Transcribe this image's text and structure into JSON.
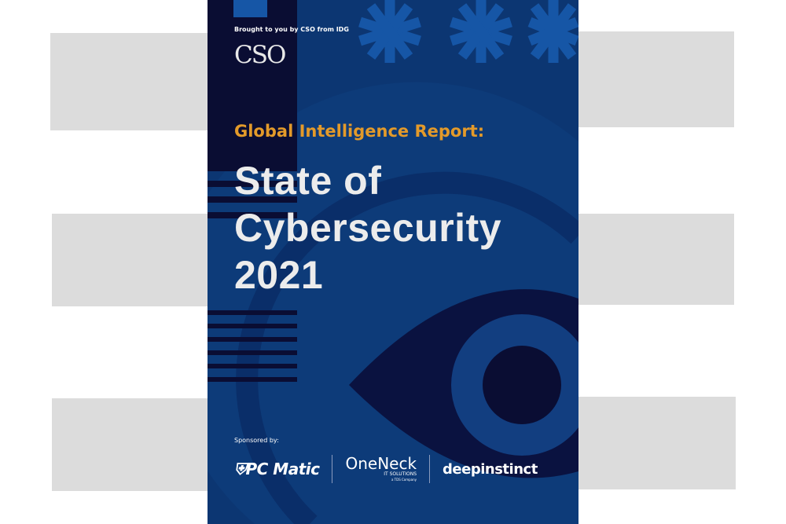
{
  "cover": {
    "brought_by": "Brought to you by CSO from IDG",
    "publisher_logo": "CSO",
    "kicker": "Global Intelligence Report:",
    "title_lines": [
      "State of",
      "Cybersecurity",
      "2021"
    ],
    "sponsored_label": "Sponsored by:",
    "sponsors": {
      "pc_matic": "PC Matic",
      "oneneck": "OneNeck",
      "oneneck_sub": "IT SOLUTIONS",
      "oneneck_sub2": "a TDS Company",
      "deep_instinct": "deepinstinct"
    }
  },
  "colors": {
    "background": "#0c3672",
    "accent": "#e39a2a",
    "dark": "#0a0d33",
    "placeholder_bars": "#dcdcdc"
  }
}
